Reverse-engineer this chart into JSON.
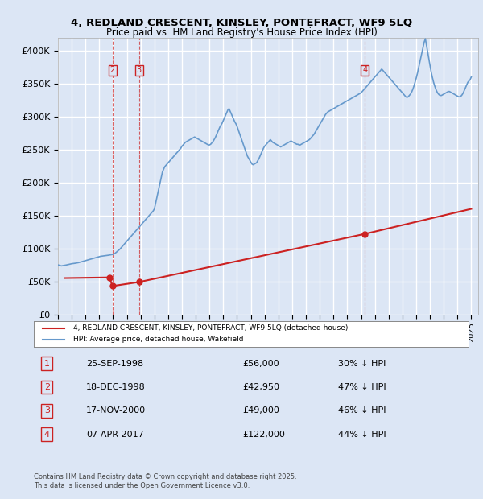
{
  "title_line1": "4, REDLAND CRESCENT, KINSLEY, PONTEFRACT, WF9 5LQ",
  "title_line2": "Price paid vs. HM Land Registry's House Price Index (HPI)",
  "xlabel": "",
  "ylabel": "",
  "ylim": [
    0,
    420000
  ],
  "yticks": [
    0,
    50000,
    100000,
    150000,
    200000,
    250000,
    300000,
    350000,
    400000
  ],
  "ytick_labels": [
    "£0",
    "£50K",
    "£100K",
    "£150K",
    "£200K",
    "£250K",
    "£300K",
    "£350K",
    "£400K"
  ],
  "background_color": "#dce6f5",
  "plot_bg_color": "#dce6f5",
  "grid_color": "#ffffff",
  "hpi_color": "#6699cc",
  "price_color": "#cc2222",
  "legend_label_price": "4, REDLAND CRESCENT, KINSLEY, PONTEFRACT, WF9 5LQ (detached house)",
  "legend_label_hpi": "HPI: Average price, detached house, Wakefield",
  "transactions": [
    {
      "num": 1,
      "date_label": "25-SEP-1998",
      "price": 56000,
      "pct": "30%",
      "x_year": 1998.73
    },
    {
      "num": 2,
      "date_label": "18-DEC-1998",
      "price": 42950,
      "pct": "47%",
      "x_year": 1998.96
    },
    {
      "num": 3,
      "date_label": "17-NOV-2000",
      "price": 49000,
      "pct": "46%",
      "x_year": 2000.88
    },
    {
      "num": 4,
      "date_label": "07-APR-2017",
      "price": 122000,
      "pct": "44%",
      "x_year": 2017.27
    }
  ],
  "footer_text": "Contains HM Land Registry data © Crown copyright and database right 2025.\nThis data is licensed under the Open Government Licence v3.0.",
  "hpi_data": {
    "years": [
      1995.0,
      1995.083,
      1995.167,
      1995.25,
      1995.333,
      1995.417,
      1995.5,
      1995.583,
      1995.667,
      1995.75,
      1995.833,
      1995.917,
      1996.0,
      1996.083,
      1996.167,
      1996.25,
      1996.333,
      1996.417,
      1996.5,
      1996.583,
      1996.667,
      1996.75,
      1996.833,
      1996.917,
      1997.0,
      1997.083,
      1997.167,
      1997.25,
      1997.333,
      1997.417,
      1997.5,
      1997.583,
      1997.667,
      1997.75,
      1997.833,
      1997.917,
      1998.0,
      1998.083,
      1998.167,
      1998.25,
      1998.333,
      1998.417,
      1998.5,
      1998.583,
      1998.667,
      1998.75,
      1998.833,
      1998.917,
      1999.0,
      1999.083,
      1999.167,
      1999.25,
      1999.333,
      1999.417,
      1999.5,
      1999.583,
      1999.667,
      1999.75,
      1999.833,
      1999.917,
      2000.0,
      2000.083,
      2000.167,
      2000.25,
      2000.333,
      2000.417,
      2000.5,
      2000.583,
      2000.667,
      2000.75,
      2000.833,
      2000.917,
      2001.0,
      2001.083,
      2001.167,
      2001.25,
      2001.333,
      2001.417,
      2001.5,
      2001.583,
      2001.667,
      2001.75,
      2001.833,
      2001.917,
      2002.0,
      2002.083,
      2002.167,
      2002.25,
      2002.333,
      2002.417,
      2002.5,
      2002.583,
      2002.667,
      2002.75,
      2002.833,
      2002.917,
      2003.0,
      2003.083,
      2003.167,
      2003.25,
      2003.333,
      2003.417,
      2003.5,
      2003.583,
      2003.667,
      2003.75,
      2003.833,
      2003.917,
      2004.0,
      2004.083,
      2004.167,
      2004.25,
      2004.333,
      2004.417,
      2004.5,
      2004.583,
      2004.667,
      2004.75,
      2004.833,
      2004.917,
      2005.0,
      2005.083,
      2005.167,
      2005.25,
      2005.333,
      2005.417,
      2005.5,
      2005.583,
      2005.667,
      2005.75,
      2005.833,
      2005.917,
      2006.0,
      2006.083,
      2006.167,
      2006.25,
      2006.333,
      2006.417,
      2006.5,
      2006.583,
      2006.667,
      2006.75,
      2006.833,
      2006.917,
      2007.0,
      2007.083,
      2007.167,
      2007.25,
      2007.333,
      2007.417,
      2007.5,
      2007.583,
      2007.667,
      2007.75,
      2007.833,
      2007.917,
      2008.0,
      2008.083,
      2008.167,
      2008.25,
      2008.333,
      2008.417,
      2008.5,
      2008.583,
      2008.667,
      2008.75,
      2008.833,
      2008.917,
      2009.0,
      2009.083,
      2009.167,
      2009.25,
      2009.333,
      2009.417,
      2009.5,
      2009.583,
      2009.667,
      2009.75,
      2009.833,
      2009.917,
      2010.0,
      2010.083,
      2010.167,
      2010.25,
      2010.333,
      2010.417,
      2010.5,
      2010.583,
      2010.667,
      2010.75,
      2010.833,
      2010.917,
      2011.0,
      2011.083,
      2011.167,
      2011.25,
      2011.333,
      2011.417,
      2011.5,
      2011.583,
      2011.667,
      2011.75,
      2011.833,
      2011.917,
      2012.0,
      2012.083,
      2012.167,
      2012.25,
      2012.333,
      2012.417,
      2012.5,
      2012.583,
      2012.667,
      2012.75,
      2012.833,
      2012.917,
      2013.0,
      2013.083,
      2013.167,
      2013.25,
      2013.333,
      2013.417,
      2013.5,
      2013.583,
      2013.667,
      2013.75,
      2013.833,
      2013.917,
      2014.0,
      2014.083,
      2014.167,
      2014.25,
      2014.333,
      2014.417,
      2014.5,
      2014.583,
      2014.667,
      2014.75,
      2014.833,
      2014.917,
      2015.0,
      2015.083,
      2015.167,
      2015.25,
      2015.333,
      2015.417,
      2015.5,
      2015.583,
      2015.667,
      2015.75,
      2015.833,
      2015.917,
      2016.0,
      2016.083,
      2016.167,
      2016.25,
      2016.333,
      2016.417,
      2016.5,
      2016.583,
      2016.667,
      2016.75,
      2016.833,
      2016.917,
      2017.0,
      2017.083,
      2017.167,
      2017.25,
      2017.333,
      2017.417,
      2017.5,
      2017.583,
      2017.667,
      2017.75,
      2017.833,
      2017.917,
      2018.0,
      2018.083,
      2018.167,
      2018.25,
      2018.333,
      2018.417,
      2018.5,
      2018.583,
      2018.667,
      2018.75,
      2018.833,
      2018.917,
      2019.0,
      2019.083,
      2019.167,
      2019.25,
      2019.333,
      2019.417,
      2019.5,
      2019.583,
      2019.667,
      2019.75,
      2019.833,
      2019.917,
      2020.0,
      2020.083,
      2020.167,
      2020.25,
      2020.333,
      2020.417,
      2020.5,
      2020.583,
      2020.667,
      2020.75,
      2020.833,
      2020.917,
      2021.0,
      2021.083,
      2021.167,
      2021.25,
      2021.333,
      2021.417,
      2021.5,
      2021.583,
      2021.667,
      2021.75,
      2021.833,
      2021.917,
      2022.0,
      2022.083,
      2022.167,
      2022.25,
      2022.333,
      2022.417,
      2022.5,
      2022.583,
      2022.667,
      2022.75,
      2022.833,
      2022.917,
      2023.0,
      2023.083,
      2023.167,
      2023.25,
      2023.333,
      2023.417,
      2023.5,
      2023.583,
      2023.667,
      2023.75,
      2023.833,
      2023.917,
      2024.0,
      2024.083,
      2024.167,
      2024.25,
      2024.333,
      2024.417,
      2024.5,
      2024.583,
      2024.667,
      2024.75,
      2024.917,
      2025.0
    ],
    "values": [
      75000,
      74500,
      74000,
      73500,
      73800,
      74200,
      74500,
      74800,
      75200,
      75500,
      76000,
      76500,
      76800,
      77000,
      77200,
      77500,
      77800,
      78000,
      78500,
      79000,
      79500,
      80000,
      80500,
      81000,
      81500,
      82000,
      82500,
      83000,
      83500,
      84000,
      84500,
      85000,
      85500,
      86000,
      86500,
      87000,
      87500,
      88000,
      88200,
      88500,
      88800,
      89000,
      89200,
      89500,
      89700,
      90000,
      90200,
      90500,
      91000,
      92000,
      93000,
      94500,
      96000,
      97500,
      99000,
      101000,
      103000,
      105000,
      107000,
      109000,
      111000,
      113000,
      115000,
      117000,
      119000,
      121000,
      123000,
      125000,
      127000,
      129000,
      131000,
      133000,
      135000,
      137000,
      139000,
      141000,
      143000,
      145000,
      147000,
      149000,
      151000,
      153000,
      155000,
      157000,
      160000,
      168000,
      176000,
      184000,
      192000,
      200000,
      208000,
      216000,
      220000,
      224000,
      226000,
      228000,
      230000,
      232000,
      234000,
      236000,
      238000,
      240000,
      242000,
      244000,
      246000,
      248000,
      250000,
      252000,
      255000,
      257000,
      259000,
      261000,
      262000,
      263000,
      264000,
      265000,
      266000,
      267000,
      268000,
      269000,
      268000,
      267000,
      266000,
      265000,
      264000,
      263000,
      262000,
      261000,
      260000,
      259000,
      258000,
      257000,
      257000,
      258000,
      260000,
      262000,
      265000,
      268000,
      272000,
      276000,
      280000,
      284000,
      287000,
      290000,
      294000,
      298000,
      302000,
      306000,
      310000,
      312000,
      308000,
      304000,
      300000,
      296000,
      292000,
      289000,
      285000,
      280000,
      275000,
      270000,
      265000,
      260000,
      255000,
      250000,
      245000,
      240000,
      237000,
      234000,
      231000,
      228000,
      227000,
      228000,
      229000,
      230000,
      233000,
      236000,
      240000,
      244000,
      248000,
      252000,
      255000,
      257000,
      259000,
      261000,
      263000,
      265000,
      263000,
      261000,
      260000,
      259000,
      258000,
      257000,
      256000,
      255000,
      254000,
      255000,
      256000,
      257000,
      258000,
      259000,
      260000,
      261000,
      262000,
      263000,
      262000,
      261000,
      260000,
      259000,
      258000,
      258000,
      257000,
      257000,
      258000,
      259000,
      260000,
      261000,
      262000,
      263000,
      264000,
      265000,
      267000,
      269000,
      271000,
      273000,
      276000,
      279000,
      282000,
      285000,
      288000,
      291000,
      294000,
      297000,
      300000,
      303000,
      305000,
      307000,
      308000,
      309000,
      310000,
      311000,
      312000,
      313000,
      314000,
      315000,
      316000,
      317000,
      318000,
      319000,
      320000,
      321000,
      322000,
      323000,
      324000,
      325000,
      326000,
      327000,
      328000,
      329000,
      330000,
      331000,
      332000,
      333000,
      334000,
      335000,
      336000,
      338000,
      340000,
      342000,
      344000,
      346000,
      348000,
      350000,
      352000,
      354000,
      356000,
      358000,
      360000,
      362000,
      364000,
      366000,
      368000,
      370000,
      372000,
      370000,
      368000,
      366000,
      364000,
      362000,
      360000,
      358000,
      356000,
      354000,
      352000,
      350000,
      348000,
      346000,
      344000,
      342000,
      340000,
      338000,
      336000,
      334000,
      332000,
      330000,
      329000,
      330000,
      332000,
      334000,
      337000,
      341000,
      346000,
      352000,
      358000,
      365000,
      373000,
      381000,
      389000,
      397000,
      405000,
      413000,
      418000,
      408000,
      398000,
      388000,
      378000,
      368000,
      360000,
      353000,
      347000,
      342000,
      338000,
      335000,
      333000,
      332000,
      332000,
      333000,
      334000,
      335000,
      336000,
      337000,
      338000,
      338000,
      337000,
      336000,
      335000,
      334000,
      333000,
      332000,
      331000,
      330000,
      330000,
      331000,
      333000,
      336000,
      340000,
      344000,
      348000,
      352000,
      356000,
      360000
    ]
  },
  "price_data": {
    "years": [
      1995.5,
      1998.73,
      1998.96,
      2000.88,
      2017.27,
      2025.0
    ],
    "values": [
      55000,
      56000,
      42950,
      49000,
      122000,
      160000
    ]
  },
  "price_marker_years": [
    1998.73,
    1998.96,
    2000.88,
    2017.27
  ],
  "price_marker_values": [
    56000,
    42950,
    49000,
    122000
  ],
  "marker_labels": [
    "1",
    "2",
    "3",
    "4"
  ],
  "vline_years": [
    1998.96,
    2000.88,
    2017.27
  ],
  "vline_labels": [
    "2",
    "3",
    "4"
  ],
  "xlim": [
    1995.0,
    2025.5
  ],
  "xticks": [
    1995,
    1996,
    1997,
    1998,
    1999,
    2000,
    2001,
    2002,
    2003,
    2004,
    2005,
    2006,
    2007,
    2008,
    2009,
    2010,
    2011,
    2012,
    2013,
    2014,
    2015,
    2016,
    2017,
    2018,
    2019,
    2020,
    2021,
    2022,
    2023,
    2024,
    2025
  ]
}
